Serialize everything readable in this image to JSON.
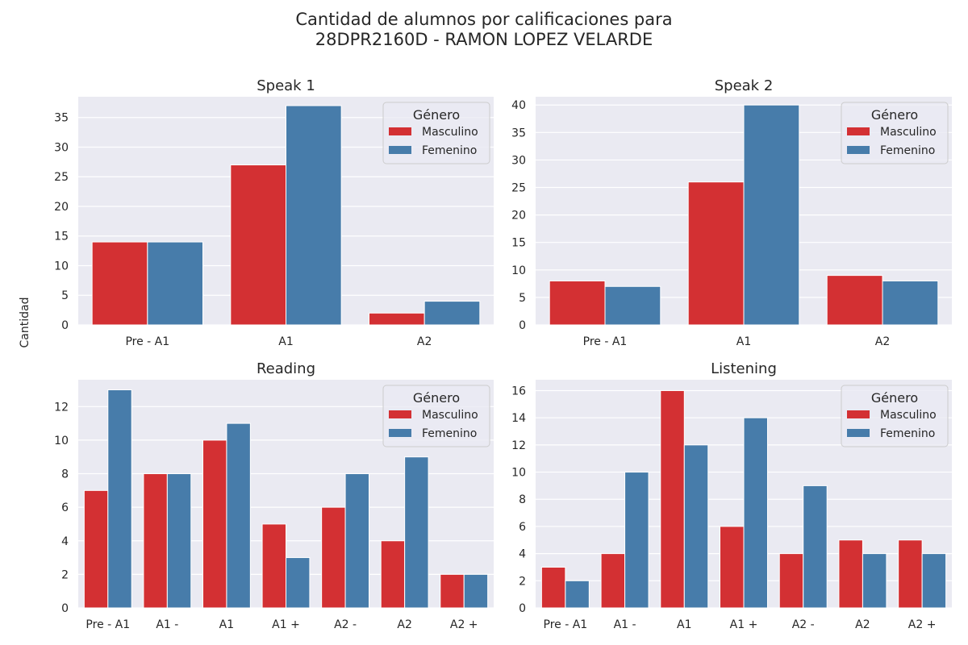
{
  "figure": {
    "title_line1": "Cantidad de alumnos por calificaciones para",
    "title_line2": "28DPR2160D - RAMON LOPEZ VELARDE",
    "ylabel": "Cantidad"
  },
  "colors": {
    "masculino": "#d33033",
    "femenino": "#477caa",
    "plot_bg": "#eaeaf2",
    "grid": "#ffffff"
  },
  "chart_data": [
    {
      "type": "bar",
      "title": "Speak 1",
      "categories": [
        "Pre - A1",
        "A1",
        "A2"
      ],
      "series": [
        {
          "name": "Masculino",
          "values": [
            14,
            27,
            2
          ]
        },
        {
          "name": "Femenino",
          "values": [
            14,
            37,
            4
          ]
        }
      ],
      "ylim": [
        0,
        38.5
      ],
      "yticks": [
        0,
        5,
        10,
        15,
        20,
        25,
        30,
        35
      ],
      "legend_title": "Género",
      "legend_position": "top-right",
      "grid": true
    },
    {
      "type": "bar",
      "title": "Speak 2",
      "categories": [
        "Pre - A1",
        "A1",
        "A2"
      ],
      "series": [
        {
          "name": "Masculino",
          "values": [
            8,
            26,
            9
          ]
        },
        {
          "name": "Femenino",
          "values": [
            7,
            40,
            8
          ]
        }
      ],
      "ylim": [
        0,
        41.5
      ],
      "yticks": [
        0,
        5,
        10,
        15,
        20,
        25,
        30,
        35,
        40
      ],
      "legend_title": "Género",
      "legend_position": "top-right",
      "grid": true
    },
    {
      "type": "bar",
      "title": "Reading",
      "categories": [
        "Pre - A1",
        "A1 -",
        "A1",
        "A1 +",
        "A2 -",
        "A2",
        "A2 +"
      ],
      "series": [
        {
          "name": "Masculino",
          "values": [
            7,
            8,
            10,
            5,
            6,
            4,
            2
          ]
        },
        {
          "name": "Femenino",
          "values": [
            13,
            8,
            11,
            3,
            8,
            9,
            2
          ]
        }
      ],
      "ylim": [
        0,
        13.6
      ],
      "yticks": [
        0,
        2,
        4,
        6,
        8,
        10,
        12
      ],
      "legend_title": "Género",
      "legend_position": "top-right",
      "grid": true
    },
    {
      "type": "bar",
      "title": "Listening",
      "categories": [
        "Pre - A1",
        "A1 -",
        "A1",
        "A1 +",
        "A2 -",
        "A2",
        "A2 +"
      ],
      "series": [
        {
          "name": "Masculino",
          "values": [
            3,
            4,
            16,
            6,
            4,
            5,
            5
          ]
        },
        {
          "name": "Femenino",
          "values": [
            2,
            10,
            12,
            14,
            9,
            4,
            4
          ]
        }
      ],
      "ylim": [
        0,
        16.8
      ],
      "yticks": [
        0,
        2,
        4,
        6,
        8,
        10,
        12,
        14,
        16
      ],
      "legend_title": "Género",
      "legend_position": "top-right",
      "grid": true
    }
  ]
}
